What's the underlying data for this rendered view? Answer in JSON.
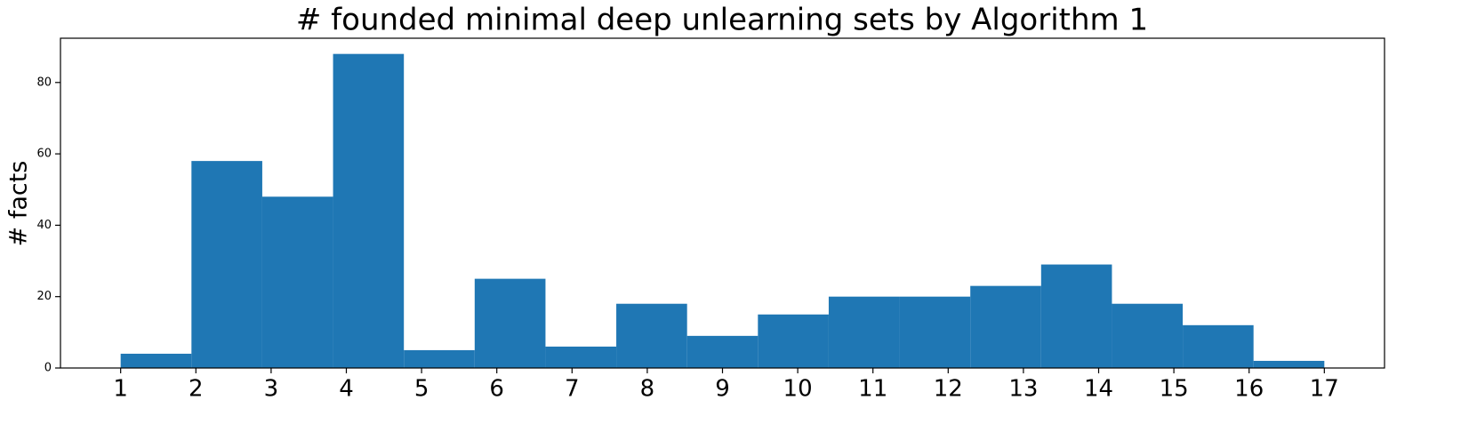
{
  "chart_data": {
    "type": "histogram",
    "title": "# founded minimal deep unlearning sets by Algorithm 1",
    "y_label": "# facts",
    "bins": [
      1,
      1.9412,
      2.8824,
      3.8235,
      4.7647,
      5.7059,
      6.6471,
      7.5882,
      8.5294,
      9.4706,
      10.4118,
      11.3529,
      12.2941,
      13.2353,
      14.1765,
      15.1176,
      16.0588,
      17
    ],
    "values": [
      4,
      58,
      48,
      88,
      5,
      25,
      6,
      18,
      9,
      15,
      20,
      20,
      23,
      29,
      18,
      12,
      2
    ],
    "color": "#1f77b4",
    "xlim": [
      0.2,
      17.8
    ],
    "xticks": [
      1,
      2,
      3,
      4,
      5,
      6,
      7,
      8,
      9,
      10,
      11,
      12,
      13,
      14,
      15,
      16,
      17
    ],
    "ylim": [
      0,
      92.4
    ],
    "yticks": [
      0,
      20,
      40,
      60,
      80
    ],
    "grid": false
  }
}
